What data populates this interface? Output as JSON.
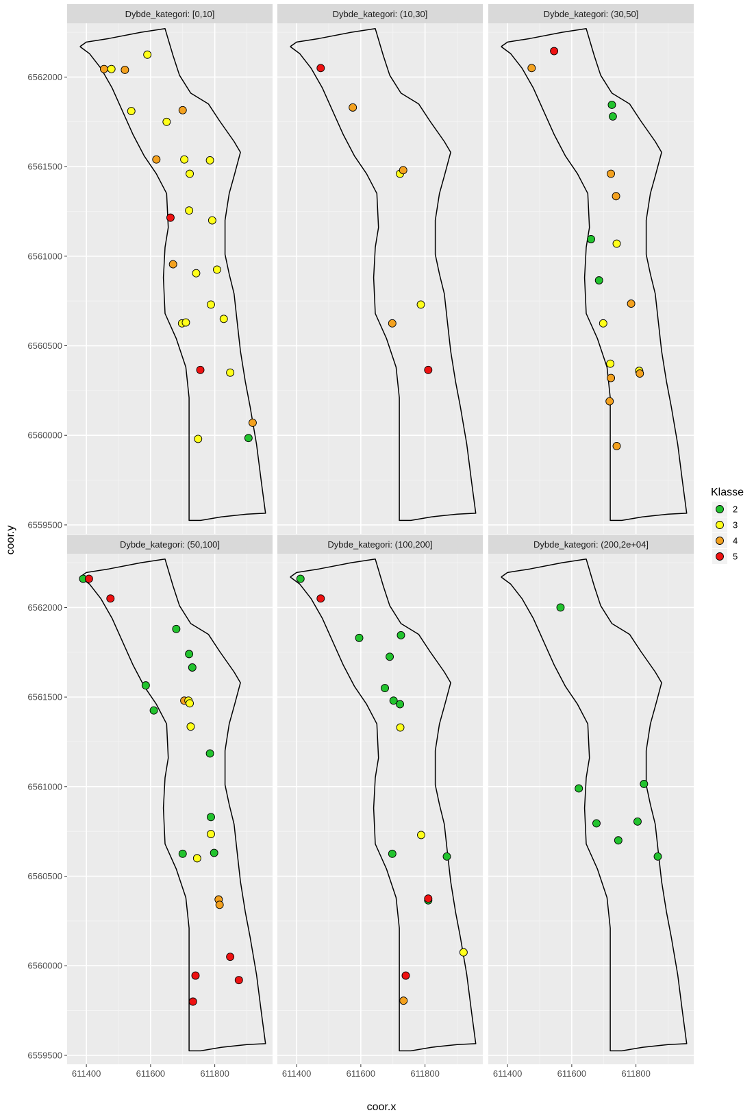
{
  "chart_data": {
    "type": "scatter",
    "xlabel": "coor.x",
    "ylabel": "coor.y",
    "xlim": [
      611340,
      611980
    ],
    "ylim": [
      6559450,
      6562300
    ],
    "x_ticks": [
      611400,
      611600,
      611800
    ],
    "y_ticks": [
      6559500,
      6560000,
      6560500,
      6561000,
      6561500,
      6562000
    ],
    "grid": true,
    "legend": {
      "title": "Klasse",
      "position": "right",
      "entries": [
        {
          "label": "2",
          "color": "#22c32e"
        },
        {
          "label": "3",
          "color": "#ffff1a"
        },
        {
          "label": "4",
          "color": "#f3a11f"
        },
        {
          "label": "5",
          "color": "#ee1111"
        }
      ]
    },
    "class_colors": {
      "2": "#22c32e",
      "3": "#ffff1a",
      "4": "#f3a11f",
      "5": "#ee1111"
    },
    "boundary": [
      [
        611380,
        6562170
      ],
      [
        611400,
        6562195
      ],
      [
        611470,
        6562215
      ],
      [
        611570,
        6562250
      ],
      [
        611645,
        6562270
      ],
      [
        611670,
        6562120
      ],
      [
        611690,
        6562010
      ],
      [
        611725,
        6561910
      ],
      [
        611780,
        6561850
      ],
      [
        611815,
        6561755
      ],
      [
        611860,
        6561640
      ],
      [
        611880,
        6561580
      ],
      [
        611862,
        6561460
      ],
      [
        611845,
        6561350
      ],
      [
        611832,
        6561200
      ],
      [
        611832,
        6561010
      ],
      [
        611845,
        6560900
      ],
      [
        611860,
        6560790
      ],
      [
        611870,
        6560630
      ],
      [
        611880,
        6560470
      ],
      [
        611895,
        6560300
      ],
      [
        611910,
        6560160
      ],
      [
        611930,
        6559950
      ],
      [
        611945,
        6559740
      ],
      [
        611958,
        6559565
      ],
      [
        611900,
        6559560
      ],
      [
        611820,
        6559545
      ],
      [
        611756,
        6559525
      ],
      [
        611720,
        6559525
      ],
      [
        611720,
        6560210
      ],
      [
        611710,
        6560380
      ],
      [
        611680,
        6560540
      ],
      [
        611645,
        6560680
      ],
      [
        611640,
        6560880
      ],
      [
        611645,
        6561050
      ],
      [
        611655,
        6561160
      ],
      [
        611650,
        6561350
      ],
      [
        611618,
        6561460
      ],
      [
        611580,
        6561560
      ],
      [
        611545,
        6561680
      ],
      [
        611515,
        6561800
      ],
      [
        611480,
        6561940
      ],
      [
        611445,
        6562050
      ],
      [
        611410,
        6562130
      ],
      [
        611380,
        6562170
      ]
    ],
    "facets": [
      {
        "label": "Dybde_kategori: [0,10]",
        "points": [
          {
            "x": 611455,
            "y": 6562045,
            "klasse": "4"
          },
          {
            "x": 611478,
            "y": 6562045,
            "klasse": "3"
          },
          {
            "x": 611520,
            "y": 6562040,
            "klasse": "4"
          },
          {
            "x": 611590,
            "y": 6562125,
            "klasse": "3"
          },
          {
            "x": 611540,
            "y": 6561810,
            "klasse": "3"
          },
          {
            "x": 611650,
            "y": 6561750,
            "klasse": "3"
          },
          {
            "x": 611700,
            "y": 6561815,
            "klasse": "4"
          },
          {
            "x": 611618,
            "y": 6561540,
            "klasse": "4"
          },
          {
            "x": 611705,
            "y": 6561540,
            "klasse": "3"
          },
          {
            "x": 611785,
            "y": 6561535,
            "klasse": "3"
          },
          {
            "x": 611722,
            "y": 6561460,
            "klasse": "3"
          },
          {
            "x": 611720,
            "y": 6561255,
            "klasse": "3"
          },
          {
            "x": 611792,
            "y": 6561200,
            "klasse": "3"
          },
          {
            "x": 611662,
            "y": 6561215,
            "klasse": "5"
          },
          {
            "x": 611670,
            "y": 6560955,
            "klasse": "4"
          },
          {
            "x": 611742,
            "y": 6560905,
            "klasse": "3"
          },
          {
            "x": 611807,
            "y": 6560925,
            "klasse": "3"
          },
          {
            "x": 611788,
            "y": 6560730,
            "klasse": "3"
          },
          {
            "x": 611698,
            "y": 6560625,
            "klasse": "3"
          },
          {
            "x": 611710,
            "y": 6560630,
            "klasse": "3"
          },
          {
            "x": 611828,
            "y": 6560650,
            "klasse": "3"
          },
          {
            "x": 611755,
            "y": 6560365,
            "klasse": "5"
          },
          {
            "x": 611848,
            "y": 6560350,
            "klasse": "3"
          },
          {
            "x": 611918,
            "y": 6560070,
            "klasse": "4"
          },
          {
            "x": 611748,
            "y": 6559980,
            "klasse": "3"
          },
          {
            "x": 611905,
            "y": 6559985,
            "klasse": "2"
          }
        ]
      },
      {
        "label": "Dybde_kategori: (10,30]",
        "points": [
          {
            "x": 611475,
            "y": 6562050,
            "klasse": "5"
          },
          {
            "x": 611575,
            "y": 6561830,
            "klasse": "4"
          },
          {
            "x": 611722,
            "y": 6561460,
            "klasse": "3"
          },
          {
            "x": 611732,
            "y": 6561480,
            "klasse": "4"
          },
          {
            "x": 611787,
            "y": 6560730,
            "klasse": "3"
          },
          {
            "x": 611698,
            "y": 6560625,
            "klasse": "4"
          },
          {
            "x": 611810,
            "y": 6560365,
            "klasse": "5"
          }
        ]
      },
      {
        "label": "Dybde_kategori: (30,50]",
        "points": [
          {
            "x": 611475,
            "y": 6562050,
            "klasse": "4"
          },
          {
            "x": 611545,
            "y": 6562145,
            "klasse": "5"
          },
          {
            "x": 611725,
            "y": 6561845,
            "klasse": "2"
          },
          {
            "x": 611728,
            "y": 6561780,
            "klasse": "2"
          },
          {
            "x": 611722,
            "y": 6561460,
            "klasse": "4"
          },
          {
            "x": 611738,
            "y": 6561335,
            "klasse": "4"
          },
          {
            "x": 611660,
            "y": 6561095,
            "klasse": "2"
          },
          {
            "x": 611740,
            "y": 6561070,
            "klasse": "3"
          },
          {
            "x": 611685,
            "y": 6560865,
            "klasse": "2"
          },
          {
            "x": 611785,
            "y": 6560735,
            "klasse": "4"
          },
          {
            "x": 611698,
            "y": 6560625,
            "klasse": "3"
          },
          {
            "x": 611720,
            "y": 6560400,
            "klasse": "3"
          },
          {
            "x": 611810,
            "y": 6560360,
            "klasse": "3"
          },
          {
            "x": 611812,
            "y": 6560345,
            "klasse": "4"
          },
          {
            "x": 611722,
            "y": 6560320,
            "klasse": "4"
          },
          {
            "x": 611718,
            "y": 6560190,
            "klasse": "4"
          },
          {
            "x": 611740,
            "y": 6559940,
            "klasse": "4"
          }
        ]
      },
      {
        "label": "Dybde_kategori: (50,100]",
        "points": [
          {
            "x": 611390,
            "y": 6562160,
            "klasse": "2"
          },
          {
            "x": 611408,
            "y": 6562160,
            "klasse": "5"
          },
          {
            "x": 611475,
            "y": 6562050,
            "klasse": "5"
          },
          {
            "x": 611680,
            "y": 6561880,
            "klasse": "2"
          },
          {
            "x": 611720,
            "y": 6561740,
            "klasse": "2"
          },
          {
            "x": 611730,
            "y": 6561665,
            "klasse": "2"
          },
          {
            "x": 611585,
            "y": 6561565,
            "klasse": "2"
          },
          {
            "x": 611610,
            "y": 6561425,
            "klasse": "2"
          },
          {
            "x": 611705,
            "y": 6561480,
            "klasse": "4"
          },
          {
            "x": 611718,
            "y": 6561480,
            "klasse": "3"
          },
          {
            "x": 611722,
            "y": 6561465,
            "klasse": "3"
          },
          {
            "x": 611725,
            "y": 6561335,
            "klasse": "3"
          },
          {
            "x": 611785,
            "y": 6561185,
            "klasse": "2"
          },
          {
            "x": 611788,
            "y": 6560830,
            "klasse": "2"
          },
          {
            "x": 611788,
            "y": 6560735,
            "klasse": "3"
          },
          {
            "x": 611700,
            "y": 6560625,
            "klasse": "2"
          },
          {
            "x": 611745,
            "y": 6560600,
            "klasse": "3"
          },
          {
            "x": 611798,
            "y": 6560630,
            "klasse": "2"
          },
          {
            "x": 611812,
            "y": 6560370,
            "klasse": "4"
          },
          {
            "x": 611815,
            "y": 6560340,
            "klasse": "4"
          },
          {
            "x": 611848,
            "y": 6560050,
            "klasse": "5"
          },
          {
            "x": 611875,
            "y": 6559920,
            "klasse": "5"
          },
          {
            "x": 611740,
            "y": 6559945,
            "klasse": "5"
          },
          {
            "x": 611732,
            "y": 6559800,
            "klasse": "5"
          }
        ]
      },
      {
        "label": "Dybde_kategori: (100,200]",
        "points": [
          {
            "x": 611412,
            "y": 6562160,
            "klasse": "2"
          },
          {
            "x": 611475,
            "y": 6562050,
            "klasse": "5"
          },
          {
            "x": 611595,
            "y": 6561830,
            "klasse": "2"
          },
          {
            "x": 611725,
            "y": 6561845,
            "klasse": "2"
          },
          {
            "x": 611690,
            "y": 6561725,
            "klasse": "2"
          },
          {
            "x": 611675,
            "y": 6561550,
            "klasse": "2"
          },
          {
            "x": 611702,
            "y": 6561480,
            "klasse": "2"
          },
          {
            "x": 611722,
            "y": 6561460,
            "klasse": "2"
          },
          {
            "x": 611723,
            "y": 6561330,
            "klasse": "3"
          },
          {
            "x": 611788,
            "y": 6560730,
            "klasse": "3"
          },
          {
            "x": 611698,
            "y": 6560625,
            "klasse": "2"
          },
          {
            "x": 611868,
            "y": 6560610,
            "klasse": "2"
          },
          {
            "x": 611810,
            "y": 6560365,
            "klasse": "2"
          },
          {
            "x": 611810,
            "y": 6560375,
            "klasse": "5"
          },
          {
            "x": 611920,
            "y": 6560075,
            "klasse": "3"
          },
          {
            "x": 611740,
            "y": 6559945,
            "klasse": "5"
          },
          {
            "x": 611733,
            "y": 6559805,
            "klasse": "4"
          }
        ]
      },
      {
        "label": "Dybde_kategori: (200,2e+04]",
        "points": [
          {
            "x": 611565,
            "y": 6562000,
            "klasse": "2"
          },
          {
            "x": 611622,
            "y": 6560990,
            "klasse": "2"
          },
          {
            "x": 611677,
            "y": 6560795,
            "klasse": "2"
          },
          {
            "x": 611745,
            "y": 6560700,
            "klasse": "2"
          },
          {
            "x": 611805,
            "y": 6560805,
            "klasse": "2"
          },
          {
            "x": 611825,
            "y": 6561015,
            "klasse": "2"
          },
          {
            "x": 611868,
            "y": 6560610,
            "klasse": "2"
          }
        ]
      }
    ]
  }
}
